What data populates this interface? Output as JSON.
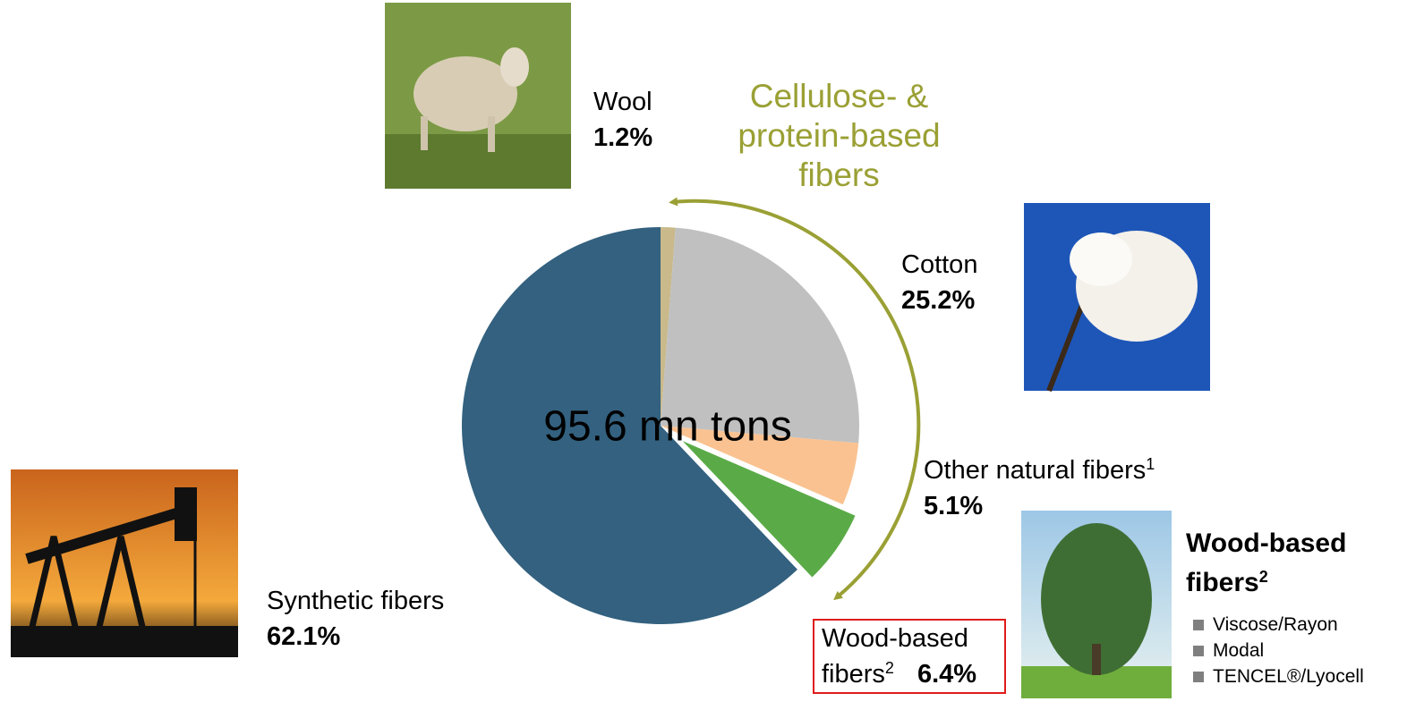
{
  "chart_data": {
    "type": "pie",
    "title": "95.6 mn tons",
    "categories": [
      "Wool",
      "Cotton",
      "Other natural fibers",
      "Wood-based fibers",
      "Synthetic fibers"
    ],
    "category_notes": [
      null,
      null,
      "1",
      "2",
      null
    ],
    "values": [
      1.2,
      25.2,
      5.1,
      6.4,
      62.1
    ],
    "value_labels": [
      "1.2%",
      "25.2%",
      "5.1%",
      "6.4%",
      "62.1%"
    ],
    "colors": [
      "#c9b98b",
      "#c0c0c0",
      "#fac291",
      "#5aab47",
      "#33617f"
    ],
    "exploded": [
      false,
      false,
      false,
      true,
      false
    ],
    "annotation": "Cellulose- & protein-based fibers",
    "side_panel": {
      "title": "Wood-based fibers",
      "title_note": "2",
      "items": [
        "Viscose/Rayon",
        "Modal",
        "TENCEL®/Lyocell"
      ]
    }
  }
}
